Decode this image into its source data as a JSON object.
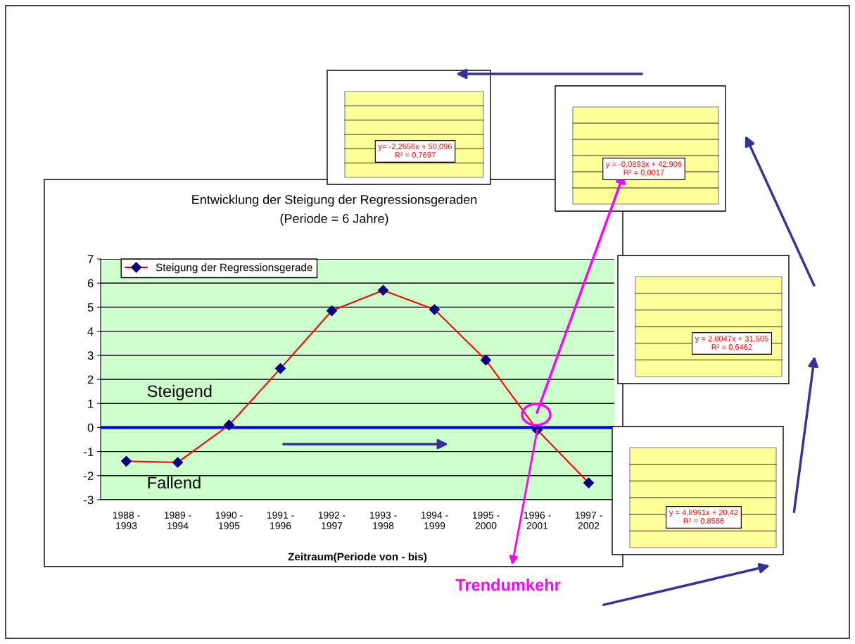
{
  "chart_data": {
    "type": "line",
    "title": "Entwicklung der Steigung der Regressionsgeraden",
    "subtitle": "(Periode = 6 Jahre)",
    "xlabel": "Zeitraum(Periode von - bis)",
    "categories": [
      "1988 -\n1993",
      "1989 -\n1994",
      "1990 -\n1995",
      "1991 -\n1996",
      "1992 -\n1997",
      "1993 -\n1998",
      "1994 -\n1999",
      "1995 -\n2000",
      "1996 -\n2001",
      "1997 -\n2002"
    ],
    "series": [
      {
        "name": "Steigung der Regressionsgerade",
        "color": "#ff0000",
        "values": [
          -1.4,
          -1.45,
          0.1,
          2.45,
          4.85,
          5.7,
          4.9,
          2.8,
          -0.1,
          -2.3
        ]
      }
    ],
    "marker": "diamond",
    "line_style": "solid",
    "ylim": [
      -3,
      7
    ],
    "yticks": [
      -3,
      -2,
      -1,
      0,
      1,
      2,
      3,
      4,
      5,
      6,
      7
    ],
    "grid": "y",
    "legend": "top left",
    "ref_lines": [
      {
        "axis": "y",
        "value": 0,
        "color": "#0000ff"
      }
    ],
    "annotations": [
      "Steigend",
      "Fallend",
      {
        "text": "Trendumkehr",
        "x": "1996 -\n2001",
        "y": -0.1
      },
      "y= -2,2656x + 50,096\nR² = 0,7697",
      "y = -0,0893x + 42,906\nR² = 0,0017",
      "y = 2,8047x + 31,505\nR² = 0,6462",
      "y = 4,8961x + 20,42\nR² = 0,8586"
    ]
  }
}
